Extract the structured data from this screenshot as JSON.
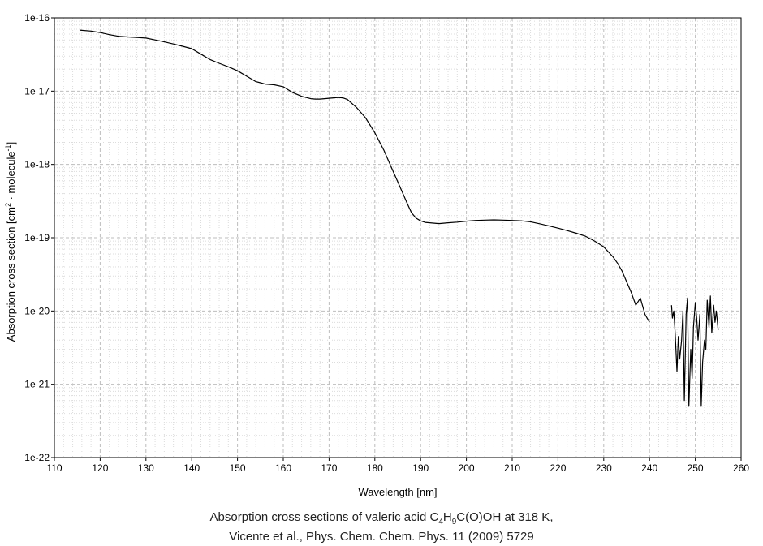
{
  "chart_data": {
    "type": "line",
    "xlabel": "Wavelength [nm]",
    "ylabel_parts": [
      "Absorption cross section [cm",
      "2",
      " · molecule",
      "-1",
      "]"
    ],
    "xlim": [
      110,
      260
    ],
    "ylim": [
      1e-22,
      1e-16
    ],
    "yscale": "log",
    "grid": true,
    "x_ticks": [
      "110",
      "120",
      "130",
      "140",
      "150",
      "160",
      "170",
      "180",
      "190",
      "200",
      "210",
      "220",
      "230",
      "240",
      "250",
      "260"
    ],
    "y_ticks": [
      "1e-22",
      "1e-21",
      "1e-20",
      "1e-19",
      "1e-18",
      "1e-17",
      "1e-16"
    ],
    "series": [
      {
        "segments": [
          {
            "x": [
              115.5,
              118,
              120,
              122,
              124,
              126,
              128,
              130,
              132,
              134,
              136,
              138,
              140,
              142,
              144,
              146,
              148,
              150,
              152,
              154,
              155,
              156,
              158,
              160,
              161,
              162,
              164,
              166,
              167,
              168,
              170,
              172,
              173,
              174,
              176,
              178,
              180,
              182,
              184,
              185,
              186,
              187,
              188,
              189,
              190,
              191,
              192,
              193,
              194,
              195,
              196,
              198,
              200,
              202,
              204,
              206,
              208,
              210,
              212,
              214,
              216,
              218,
              220,
              222,
              224,
              226,
              228,
              230,
              232,
              233,
              234,
              235,
              236,
              237,
              238,
              239,
              240
            ],
            "y": [
              6.8e-17,
              6.6e-17,
              6.3e-17,
              5.9e-17,
              5.6e-17,
              5.5e-17,
              5.4e-17,
              5.3e-17,
              5e-17,
              4.7e-17,
              4.4e-17,
              4.1e-17,
              3.8e-17,
              3.2e-17,
              2.7e-17,
              2.4e-17,
              2.15e-17,
              1.9e-17,
              1.6e-17,
              1.35e-17,
              1.3e-17,
              1.25e-17,
              1.22e-17,
              1.15e-17,
              1.05e-17,
              9.6e-18,
              8.5e-18,
              7.9e-18,
              7.8e-18,
              7.8e-18,
              8e-18,
              8.2e-18,
              8.1e-18,
              7.7e-18,
              6e-18,
              4.3e-18,
              2.7e-18,
              1.55e-18,
              8e-19,
              5.8e-19,
              4.2e-19,
              3e-19,
              2.2e-19,
              1.85e-19,
              1.7e-19,
              1.62e-19,
              1.6e-19,
              1.58e-19,
              1.56e-19,
              1.58e-19,
              1.6e-19,
              1.63e-19,
              1.68e-19,
              1.72e-19,
              1.74e-19,
              1.75e-19,
              1.74e-19,
              1.72e-19,
              1.7e-19,
              1.65e-19,
              1.55e-19,
              1.45e-19,
              1.35e-19,
              1.25e-19,
              1.15e-19,
              1.05e-19,
              9e-20,
              7.5e-20,
              5.5e-20,
              4.5e-20,
              3.5e-20,
              2.5e-20,
              1.8e-20,
              1.2e-20,
              1.5e-20,
              9e-21,
              7e-21
            ]
          },
          {
            "x": [
              244.8,
              245,
              245.3,
              245.6,
              246,
              246.3,
              246.6,
              247,
              247.3,
              247.6,
              248,
              248.3,
              248.6,
              249,
              249.3,
              249.6,
              250,
              250.3,
              250.6,
              251,
              251.3,
              251.6,
              252,
              252.3,
              252.6,
              253,
              253.3,
              253.6,
              254,
              254.3,
              254.6,
              255
            ],
            "y": [
              1.2e-20,
              8e-21,
              1e-20,
              5e-21,
              1.5e-21,
              4.5e-21,
              2.2e-21,
              4e-21,
              1e-20,
              6e-22,
              9e-21,
              1.5e-20,
              5e-22,
              3e-21,
              1.2e-21,
              6e-21,
              1.3e-20,
              8e-21,
              4e-21,
              9e-21,
              5e-22,
              2e-21,
              4e-21,
              3e-21,
              1.4e-20,
              6e-21,
              1.6e-20,
              5e-21,
              1.2e-20,
              7e-21,
              1e-20,
              5.5e-21
            ]
          }
        ]
      }
    ]
  },
  "caption": {
    "line1_parts": [
      "Absorption cross sections of valeric acid C",
      "4",
      "H",
      "9",
      "C(O)OH at 318 K,"
    ],
    "line2": "Vicente et al., Phys. Chem. Chem. Phys. 11 (2009) 5729"
  }
}
